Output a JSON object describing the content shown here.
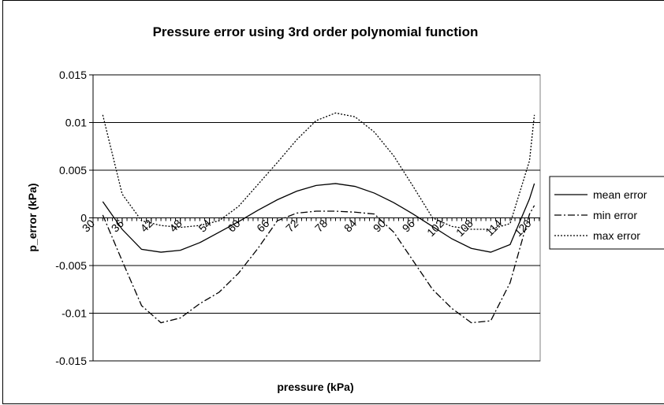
{
  "chart_data": {
    "type": "line",
    "title": "Pressure error using 3rd order polynomial function",
    "x_label": "pressure (kPa)",
    "y_label": "p_error (kPa)",
    "x": [
      32,
      36,
      40,
      44,
      48,
      52,
      56,
      60,
      64,
      68,
      72,
      76,
      80,
      84,
      88,
      92,
      96,
      100,
      104,
      108,
      112,
      116,
      120,
      121
    ],
    "series": [
      {
        "name": "mean error",
        "color": "#000000",
        "line_style": "solid",
        "values": [
          0.0017,
          -0.0012,
          -0.0033,
          -0.0036,
          -0.0034,
          -0.0026,
          -0.0015,
          -0.0004,
          0.0008,
          0.0019,
          0.0028,
          0.0034,
          0.0036,
          0.0033,
          0.0026,
          0.0016,
          0.0004,
          -0.0009,
          -0.0022,
          -0.0032,
          -0.0036,
          -0.0028,
          0.002,
          0.0036
        ]
      },
      {
        "name": "min error",
        "color": "#000000",
        "line_style": "dash-dot",
        "values": [
          0.0003,
          -0.0045,
          -0.0092,
          -0.011,
          -0.0105,
          -0.009,
          -0.0078,
          -0.0058,
          -0.0032,
          -0.0003,
          0.0005,
          0.0007,
          0.0007,
          0.0006,
          0.0004,
          -0.0015,
          -0.0045,
          -0.0075,
          -0.0095,
          -0.011,
          -0.0108,
          -0.0068,
          0.0004,
          0.0013
        ]
      },
      {
        "name": "max error",
        "color": "#000000",
        "line_style": "dotted",
        "values": [
          0.0108,
          0.0025,
          -0.0003,
          -0.0008,
          -0.001,
          -0.0008,
          -0.0003,
          0.0012,
          0.0035,
          0.0058,
          0.0082,
          0.0102,
          0.011,
          0.0106,
          0.009,
          0.0065,
          0.0033,
          0.0,
          -0.0009,
          -0.0012,
          -0.0012,
          -0.0006,
          0.006,
          0.0108
        ]
      }
    ],
    "xlim": [
      30,
      122.2
    ],
    "xticks": [
      30,
      36,
      42,
      48,
      54,
      60,
      66,
      72,
      78,
      84,
      90,
      96,
      102,
      108,
      114,
      120
    ],
    "ylim": [
      -0.015,
      0.015
    ],
    "yticks": [
      -0.015,
      -0.01,
      -0.005,
      0,
      0.005,
      0.01,
      0.015
    ],
    "grid": true,
    "legend": "right"
  }
}
